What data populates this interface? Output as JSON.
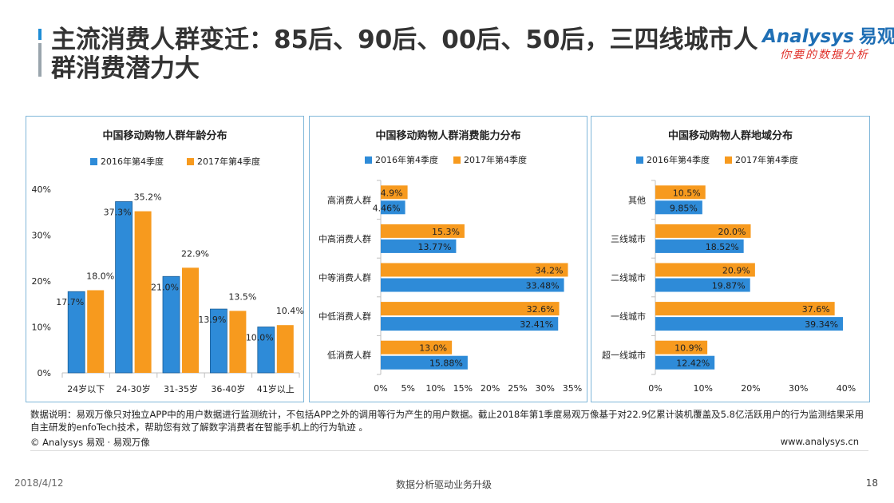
{
  "header": {
    "title": "主流消费人群变迁：85后、90后、00后、50后，三四线城市人群消费潜力大",
    "logo_brand": "Analysys",
    "logo_cn": "易观",
    "logo_tagline": "你要的数据分析"
  },
  "colors": {
    "series_2016": "#2e8bd8",
    "series_2017": "#f79a1e",
    "panel_border": "#7fb6d9",
    "accent": "#1f8dd6"
  },
  "chart_data": [
    {
      "type": "bar",
      "orientation": "vertical",
      "title": "中国移动购物人群年龄分布",
      "categories": [
        "24岁以下",
        "24-30岁",
        "31-35岁",
        "36-40岁",
        "41岁以上"
      ],
      "series": [
        {
          "name": "2016年第4季度",
          "values": [
            17.7,
            37.3,
            21.0,
            13.9,
            10.0
          ],
          "labels": [
            "17.7%",
            "37.3%",
            "21.0%",
            "13.9%",
            "10.0%"
          ]
        },
        {
          "name": "2017年第4季度",
          "values": [
            18.0,
            35.2,
            22.9,
            13.5,
            10.4
          ],
          "labels": [
            "18.0%",
            "35.2%",
            "22.9%",
            "13.5%",
            "10.4%"
          ]
        }
      ],
      "ylim": [
        0,
        40
      ],
      "yticks": [
        0,
        10,
        20,
        30,
        40
      ],
      "ytick_labels": [
        "0%",
        "10%",
        "20%",
        "30%",
        "40%"
      ],
      "legend": "top",
      "grid": false
    },
    {
      "type": "bar",
      "orientation": "horizontal",
      "title": "中国移动购物人群消费能力分布",
      "categories": [
        "高消费人群",
        "中高消费人群",
        "中等消费人群",
        "中低消费人群",
        "低消费人群"
      ],
      "series": [
        {
          "name": "2016年第4季度",
          "values": [
            4.46,
            13.77,
            33.48,
            32.41,
            15.88
          ],
          "labels": [
            "4.46%",
            "13.77%",
            "33.48%",
            "32.41%",
            "15.88%"
          ]
        },
        {
          "name": "2017年第4季度",
          "values": [
            4.9,
            15.3,
            34.2,
            32.6,
            13.0
          ],
          "labels": [
            "4.9%",
            "15.3%",
            "34.2%",
            "32.6%",
            "13.0%"
          ]
        }
      ],
      "xlim": [
        0,
        35
      ],
      "xticks": [
        0,
        5,
        10,
        15,
        20,
        25,
        30,
        35
      ],
      "xtick_labels": [
        "0%",
        "5%",
        "10%",
        "15%",
        "20%",
        "25%",
        "30%",
        "35%"
      ],
      "legend": "top",
      "grid": false
    },
    {
      "type": "bar",
      "orientation": "horizontal",
      "title": "中国移动购物人群地域分布",
      "categories": [
        "其他",
        "三线城市",
        "二线城市",
        "一线城市",
        "超一线城市"
      ],
      "series": [
        {
          "name": "2016年第4季度",
          "values": [
            9.85,
            18.52,
            19.87,
            39.34,
            12.42
          ],
          "labels": [
            "9.85%",
            "18.52%",
            "19.87%",
            "39.34%",
            "12.42%"
          ]
        },
        {
          "name": "2017年第4季度",
          "values": [
            10.5,
            20.0,
            20.9,
            37.6,
            10.9
          ],
          "labels": [
            "10.5%",
            "20.0%",
            "20.9%",
            "37.6%",
            "10.9%"
          ]
        }
      ],
      "xlim": [
        0,
        40
      ],
      "xticks": [
        0,
        10,
        20,
        30,
        40
      ],
      "xtick_labels": [
        "0%",
        "10%",
        "20%",
        "30%",
        "40%"
      ],
      "legend": "top",
      "grid": false
    }
  ],
  "note": "数据说明：易观万像只对独立APP中的用户数据进行监测统计，不包括APP之外的调用等行为产生的用户数据。截止2018年第1季度易观万像基于对22.9亿累计装机覆盖及5.8亿活跃用户的行为监测结果采用自主研发的enfoTech技术，帮助您有效了解数字消费者在智能手机上的行为轨迹 。",
  "footer": {
    "copyright": "© Analysys 易观 · 易观万像",
    "website": "www.analysys.cn",
    "date": "2018/4/12",
    "slogan": "数据分析驱动业务升级",
    "page_number": "18"
  }
}
